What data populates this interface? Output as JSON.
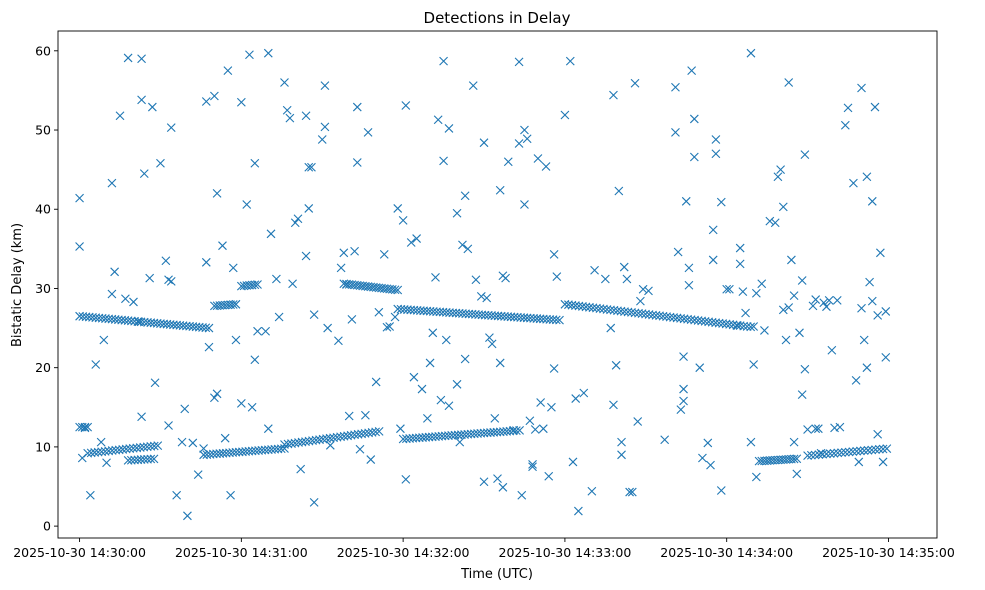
{
  "chart_data": {
    "type": "scatter",
    "title": "Detections in Delay",
    "xlabel": "Time (UTC)",
    "ylabel": "Bistatic Delay (km)",
    "x_unit": "seconds after 2025-10-30 14:30:00 UTC",
    "xlim": [
      -8,
      318
    ],
    "ylim": [
      -1.5,
      62.5
    ],
    "x_ticks": [
      0,
      60,
      120,
      180,
      240,
      300
    ],
    "x_tick_labels": [
      "2025-10-30 14:30:00",
      "2025-10-30 14:31:00",
      "2025-10-30 14:32:00",
      "2025-10-30 14:33:00",
      "2025-10-30 14:34:00",
      "2025-10-30 14:35:00"
    ],
    "y_ticks": [
      0,
      10,
      20,
      30,
      40,
      50,
      60
    ],
    "y_tick_labels": [
      "0",
      "10",
      "20",
      "30",
      "40",
      "50",
      "60"
    ],
    "marker": "x",
    "color": "#1f77b4",
    "grid": false,
    "bands": [
      {
        "name": "upper-1",
        "x_start": 0,
        "x_end": 48,
        "y_start": 26.5,
        "y_end": 25.0,
        "step": 1.2
      },
      {
        "name": "upper-2",
        "x_start": 50,
        "x_end": 58,
        "y_start": 27.8,
        "y_end": 28.0,
        "step": 1.0
      },
      {
        "name": "upper-3",
        "x_start": 60,
        "x_end": 66,
        "y_start": 30.3,
        "y_end": 30.5,
        "step": 1.0
      },
      {
        "name": "upper-4",
        "x_start": 98,
        "x_end": 118,
        "y_start": 30.6,
        "y_end": 29.8,
        "step": 1.0
      },
      {
        "name": "upper-5",
        "x_start": 118,
        "x_end": 178,
        "y_start": 27.4,
        "y_end": 26.0,
        "step": 1.2
      },
      {
        "name": "upper-6",
        "x_start": 180,
        "x_end": 250,
        "y_start": 28.0,
        "y_end": 25.1,
        "step": 1.3
      },
      {
        "name": "lower-1",
        "x_start": 0,
        "x_end": 3,
        "y_start": 12.5,
        "y_end": 12.5,
        "step": 1.0
      },
      {
        "name": "lower-2",
        "x_start": 3,
        "x_end": 30,
        "y_start": 9.2,
        "y_end": 10.2,
        "step": 1.3
      },
      {
        "name": "lower-3",
        "x_start": 18,
        "x_end": 28,
        "y_start": 8.3,
        "y_end": 8.5,
        "step": 1.2
      },
      {
        "name": "lower-4",
        "x_start": 46,
        "x_end": 76,
        "y_start": 9.0,
        "y_end": 9.8,
        "step": 1.2
      },
      {
        "name": "lower-5",
        "x_start": 76,
        "x_end": 112,
        "y_start": 10.3,
        "y_end": 12.0,
        "step": 1.3
      },
      {
        "name": "lower-6",
        "x_start": 120,
        "x_end": 164,
        "y_start": 11.0,
        "y_end": 12.1,
        "step": 1.2
      },
      {
        "name": "lower-7",
        "x_start": 252,
        "x_end": 266,
        "y_start": 8.2,
        "y_end": 8.5,
        "step": 1.0
      },
      {
        "name": "lower-8",
        "x_start": 270,
        "x_end": 300,
        "y_start": 8.9,
        "y_end": 9.8,
        "step": 1.4
      }
    ],
    "scatter_points": [
      [
        0,
        41.4
      ],
      [
        0,
        35.3
      ],
      [
        1,
        8.6
      ],
      [
        2,
        12.4
      ],
      [
        4,
        3.9
      ],
      [
        6,
        20.4
      ],
      [
        8,
        10.6
      ],
      [
        9,
        23.5
      ],
      [
        10,
        8.0
      ],
      [
        12,
        29.3
      ],
      [
        12,
        43.3
      ],
      [
        13,
        32.1
      ],
      [
        15,
        51.8
      ],
      [
        17,
        28.7
      ],
      [
        18,
        59.1
      ],
      [
        20,
        28.3
      ],
      [
        22,
        25.8
      ],
      [
        23,
        59.0
      ],
      [
        23,
        53.8
      ],
      [
        24,
        44.5
      ],
      [
        23,
        13.8
      ],
      [
        26,
        31.3
      ],
      [
        27,
        52.9
      ],
      [
        28,
        18.1
      ],
      [
        30,
        45.8
      ],
      [
        32,
        33.5
      ],
      [
        33,
        31.1
      ],
      [
        33,
        12.7
      ],
      [
        34,
        30.9
      ],
      [
        34,
        50.3
      ],
      [
        36,
        3.9
      ],
      [
        38,
        10.6
      ],
      [
        39,
        14.8
      ],
      [
        40,
        1.3
      ],
      [
        42,
        10.5
      ],
      [
        44,
        6.5
      ],
      [
        46,
        9.8
      ],
      [
        47,
        33.3
      ],
      [
        47,
        53.6
      ],
      [
        48,
        22.6
      ],
      [
        50,
        54.3
      ],
      [
        50,
        16.2
      ],
      [
        51,
        42.0
      ],
      [
        51,
        16.7
      ],
      [
        53,
        35.4
      ],
      [
        54,
        11.1
      ],
      [
        55,
        57.5
      ],
      [
        56,
        3.9
      ],
      [
        57,
        32.6
      ],
      [
        58,
        23.5
      ],
      [
        60,
        53.5
      ],
      [
        60,
        15.5
      ],
      [
        62,
        40.6
      ],
      [
        63,
        59.5
      ],
      [
        64,
        15.0
      ],
      [
        65,
        45.8
      ],
      [
        65,
        21.0
      ],
      [
        66,
        24.6
      ],
      [
        69,
        24.6
      ],
      [
        70,
        59.7
      ],
      [
        70,
        12.3
      ],
      [
        71,
        36.9
      ],
      [
        73,
        31.2
      ],
      [
        74,
        26.4
      ],
      [
        76,
        56.0
      ],
      [
        77,
        52.5
      ],
      [
        78,
        51.5
      ],
      [
        79,
        30.6
      ],
      [
        80,
        38.3
      ],
      [
        81,
        38.8
      ],
      [
        82,
        7.2
      ],
      [
        84,
        51.8
      ],
      [
        84,
        34.1
      ],
      [
        85,
        40.1
      ],
      [
        85,
        45.3
      ],
      [
        86,
        45.3
      ],
      [
        87,
        3.0
      ],
      [
        87,
        26.7
      ],
      [
        90,
        48.8
      ],
      [
        91,
        50.4
      ],
      [
        91,
        55.6
      ],
      [
        92,
        25.0
      ],
      [
        93,
        10.2
      ],
      [
        96,
        23.4
      ],
      [
        97,
        32.6
      ],
      [
        98,
        34.5
      ],
      [
        99,
        30.5
      ],
      [
        100,
        13.9
      ],
      [
        101,
        26.1
      ],
      [
        102,
        34.7
      ],
      [
        103,
        52.9
      ],
      [
        103,
        45.9
      ],
      [
        104,
        9.7
      ],
      [
        106,
        14.0
      ],
      [
        107,
        49.7
      ],
      [
        108,
        8.4
      ],
      [
        110,
        18.2
      ],
      [
        111,
        27.0
      ],
      [
        113,
        34.3
      ],
      [
        114,
        25.1
      ],
      [
        115,
        25.2
      ],
      [
        117,
        26.4
      ],
      [
        118,
        40.1
      ],
      [
        119,
        12.3
      ],
      [
        120,
        38.6
      ],
      [
        121,
        53.1
      ],
      [
        121,
        5.9
      ],
      [
        123,
        35.8
      ],
      [
        124,
        18.8
      ],
      [
        125,
        36.3
      ],
      [
        127,
        17.3
      ],
      [
        129,
        13.6
      ],
      [
        130,
        20.6
      ],
      [
        131,
        24.4
      ],
      [
        132,
        31.4
      ],
      [
        133,
        51.3
      ],
      [
        134,
        15.9
      ],
      [
        135,
        58.7
      ],
      [
        135,
        46.1
      ],
      [
        136,
        23.5
      ],
      [
        137,
        15.2
      ],
      [
        137,
        50.2
      ],
      [
        140,
        17.9
      ],
      [
        140,
        39.5
      ],
      [
        141,
        10.6
      ],
      [
        142,
        35.5
      ],
      [
        143,
        21.1
      ],
      [
        143,
        41.7
      ],
      [
        144,
        35.0
      ],
      [
        146,
        55.6
      ],
      [
        147,
        31.1
      ],
      [
        149,
        29.0
      ],
      [
        150,
        48.4
      ],
      [
        150,
        5.6
      ],
      [
        151,
        28.8
      ],
      [
        152,
        23.8
      ],
      [
        153,
        23.0
      ],
      [
        154,
        13.6
      ],
      [
        155,
        6.0
      ],
      [
        156,
        20.6
      ],
      [
        157,
        31.6
      ],
      [
        156,
        42.4
      ],
      [
        157,
        4.9
      ],
      [
        158,
        31.3
      ],
      [
        159,
        46.0
      ],
      [
        161,
        12.1
      ],
      [
        163,
        48.3
      ],
      [
        163,
        58.6
      ],
      [
        164,
        3.9
      ],
      [
        165,
        50.0
      ],
      [
        165,
        40.6
      ],
      [
        166,
        48.9
      ],
      [
        167,
        13.3
      ],
      [
        168,
        7.8
      ],
      [
        168,
        7.5
      ],
      [
        169,
        12.2
      ],
      [
        170,
        46.4
      ],
      [
        171,
        15.6
      ],
      [
        172,
        12.3
      ],
      [
        173,
        45.4
      ],
      [
        174,
        6.3
      ],
      [
        175,
        15.0
      ],
      [
        176,
        19.9
      ],
      [
        176,
        34.3
      ],
      [
        177,
        31.5
      ],
      [
        180,
        51.9
      ],
      [
        182,
        58.7
      ],
      [
        183,
        8.1
      ],
      [
        184,
        16.1
      ],
      [
        185,
        1.9
      ],
      [
        187,
        16.8
      ],
      [
        191,
        32.3
      ],
      [
        190,
        4.4
      ],
      [
        195,
        31.2
      ],
      [
        197,
        25.0
      ],
      [
        198,
        54.4
      ],
      [
        198,
        15.3
      ],
      [
        199,
        20.3
      ],
      [
        200,
        42.3
      ],
      [
        201,
        10.6
      ],
      [
        201,
        9.0
      ],
      [
        202,
        32.7
      ],
      [
        203,
        31.2
      ],
      [
        204,
        4.3
      ],
      [
        205,
        4.3
      ],
      [
        206,
        55.9
      ],
      [
        207,
        13.2
      ],
      [
        208,
        28.4
      ],
      [
        209,
        29.9
      ],
      [
        211,
        29.7
      ],
      [
        217,
        10.9
      ],
      [
        221,
        55.4
      ],
      [
        221,
        49.7
      ],
      [
        222,
        34.6
      ],
      [
        223,
        14.7
      ],
      [
        224,
        21.4
      ],
      [
        224,
        15.8
      ],
      [
        224,
        17.3
      ],
      [
        225,
        41.0
      ],
      [
        226,
        32.6
      ],
      [
        226,
        30.4
      ],
      [
        227,
        57.5
      ],
      [
        228,
        46.6
      ],
      [
        228,
        51.4
      ],
      [
        230,
        20.0
      ],
      [
        231,
        8.6
      ],
      [
        233,
        10.5
      ],
      [
        234,
        7.7
      ],
      [
        235,
        33.6
      ],
      [
        235,
        37.4
      ],
      [
        236,
        48.8
      ],
      [
        236,
        47.0
      ],
      [
        238,
        40.9
      ],
      [
        238,
        4.5
      ],
      [
        240,
        29.9
      ],
      [
        241,
        29.9
      ],
      [
        244,
        25.3
      ],
      [
        245,
        33.1
      ],
      [
        245,
        35.1
      ],
      [
        246,
        29.6
      ],
      [
        247,
        26.9
      ],
      [
        249,
        59.7
      ],
      [
        249,
        10.6
      ],
      [
        250,
        25.2
      ],
      [
        250,
        20.4
      ],
      [
        251,
        29.4
      ],
      [
        251,
        6.2
      ],
      [
        253,
        30.6
      ],
      [
        254,
        24.7
      ],
      [
        256,
        38.5
      ],
      [
        258,
        38.3
      ],
      [
        259,
        44.1
      ],
      [
        260,
        45.0
      ],
      [
        261,
        40.3
      ],
      [
        261,
        27.3
      ],
      [
        262,
        23.5
      ],
      [
        263,
        27.6
      ],
      [
        263,
        56.0
      ],
      [
        264,
        33.6
      ],
      [
        265,
        10.6
      ],
      [
        265,
        29.1
      ],
      [
        266,
        6.6
      ],
      [
        267,
        24.4
      ],
      [
        268,
        31.0
      ],
      [
        268,
        16.6
      ],
      [
        269,
        46.9
      ],
      [
        269,
        19.8
      ],
      [
        270,
        12.2
      ],
      [
        272,
        27.8
      ],
      [
        273,
        12.3
      ],
      [
        273,
        28.6
      ],
      [
        274,
        12.3
      ],
      [
        275,
        9.2
      ],
      [
        276,
        28.2
      ],
      [
        277,
        27.7
      ],
      [
        278,
        28.5
      ],
      [
        279,
        22.2
      ],
      [
        280,
        12.4
      ],
      [
        281,
        28.5
      ],
      [
        282,
        12.5
      ],
      [
        284,
        50.6
      ],
      [
        285,
        52.8
      ],
      [
        287,
        43.3
      ],
      [
        288,
        18.4
      ],
      [
        289,
        8.1
      ],
      [
        290,
        55.3
      ],
      [
        290,
        27.5
      ],
      [
        291,
        23.5
      ],
      [
        292,
        20.0
      ],
      [
        292,
        44.1
      ],
      [
        293,
        30.8
      ],
      [
        294,
        28.4
      ],
      [
        294,
        41.0
      ],
      [
        295,
        52.9
      ],
      [
        296,
        11.6
      ],
      [
        296,
        26.6
      ],
      [
        297,
        34.5
      ],
      [
        298,
        8.1
      ],
      [
        299,
        27.1
      ],
      [
        299,
        21.3
      ]
    ]
  }
}
